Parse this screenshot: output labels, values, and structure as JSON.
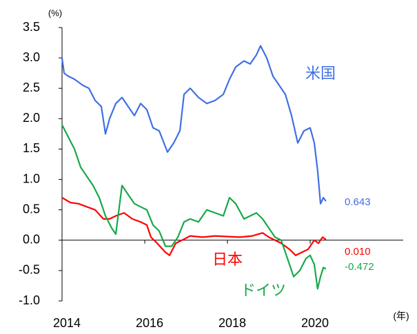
{
  "chart_data": {
    "type": "line",
    "y_label": "(%)",
    "x_label": "(年)",
    "xlim": [
      2014,
      2022.25
    ],
    "xticks": [
      2014,
      2016,
      2018,
      2020
    ],
    "ylim": [
      -1.0,
      3.5
    ],
    "yticks": [
      {
        "value": -1.0,
        "label": "-1.0"
      },
      -0.5,
      {
        "value": 0.0,
        "label": "0.0"
      },
      0.5,
      {
        "value": 1.0,
        "label": "1.0"
      },
      1.5,
      {
        "value": 2.0,
        "label": "2.0"
      },
      2.5,
      {
        "value": 3.0,
        "label": "3.0"
      },
      3.5
    ],
    "series": [
      {
        "name": "米国",
        "color": "#3f6fe6",
        "end_label": "0.643",
        "x": [
          2014.0,
          2014.05,
          2014.15,
          2014.3,
          2014.5,
          2014.65,
          2014.8,
          2014.95,
          2015.05,
          2015.15,
          2015.3,
          2015.45,
          2015.6,
          2015.75,
          2015.9,
          2016.05,
          2016.2,
          2016.35,
          2016.55,
          2016.7,
          2016.85,
          2016.95,
          2017.1,
          2017.3,
          2017.5,
          2017.7,
          2017.9,
          2018.05,
          2018.2,
          2018.4,
          2018.55,
          2018.7,
          2018.8,
          2018.95,
          2019.1,
          2019.25,
          2019.4,
          2019.55,
          2019.7,
          2019.85,
          2020.0,
          2020.1,
          2020.18,
          2020.25,
          2020.32,
          2020.38
        ],
        "values": [
          3.0,
          2.75,
          2.7,
          2.65,
          2.55,
          2.5,
          2.3,
          2.2,
          1.75,
          2.0,
          2.25,
          2.35,
          2.2,
          2.05,
          2.25,
          2.15,
          1.85,
          1.8,
          1.45,
          1.6,
          1.8,
          2.4,
          2.5,
          2.35,
          2.25,
          2.3,
          2.4,
          2.65,
          2.85,
          2.95,
          2.9,
          3.05,
          3.2,
          3.0,
          2.7,
          2.55,
          2.4,
          2.05,
          1.6,
          1.8,
          1.85,
          1.6,
          1.15,
          0.6,
          0.7,
          0.643
        ]
      },
      {
        "name": "日本",
        "color": "#ff0000",
        "end_label": "0.010",
        "x": [
          2014.0,
          2014.2,
          2014.4,
          2014.6,
          2014.8,
          2015.0,
          2015.15,
          2015.3,
          2015.5,
          2015.7,
          2015.9,
          2016.05,
          2016.15,
          2016.3,
          2016.5,
          2016.6,
          2016.75,
          2016.9,
          2017.1,
          2017.4,
          2017.7,
          2018.0,
          2018.3,
          2018.6,
          2018.85,
          2019.0,
          2019.15,
          2019.3,
          2019.5,
          2019.65,
          2019.8,
          2019.95,
          2020.1,
          2020.2,
          2020.3,
          2020.38
        ],
        "values": [
          0.7,
          0.62,
          0.6,
          0.55,
          0.5,
          0.35,
          0.35,
          0.4,
          0.45,
          0.35,
          0.3,
          0.25,
          0.05,
          -0.05,
          -0.2,
          -0.25,
          -0.05,
          0.0,
          0.07,
          0.05,
          0.07,
          0.06,
          0.05,
          0.07,
          0.12,
          0.05,
          0.0,
          -0.05,
          -0.15,
          -0.25,
          -0.2,
          -0.15,
          0.0,
          -0.05,
          0.05,
          0.01
        ]
      },
      {
        "name": "ドイツ",
        "color": "#17a84a",
        "end_label": "-0.472",
        "x": [
          2014.0,
          2014.15,
          2014.3,
          2014.45,
          2014.6,
          2014.75,
          2014.9,
          2015.05,
          2015.2,
          2015.3,
          2015.45,
          2015.6,
          2015.75,
          2015.9,
          2016.05,
          2016.2,
          2016.35,
          2016.5,
          2016.65,
          2016.8,
          2016.95,
          2017.1,
          2017.3,
          2017.5,
          2017.7,
          2017.9,
          2018.05,
          2018.2,
          2018.4,
          2018.55,
          2018.7,
          2018.85,
          2019.0,
          2019.15,
          2019.3,
          2019.45,
          2019.6,
          2019.75,
          2019.9,
          2020.0,
          2020.1,
          2020.18,
          2020.25,
          2020.32,
          2020.38
        ],
        "values": [
          1.9,
          1.7,
          1.5,
          1.2,
          1.05,
          0.9,
          0.7,
          0.4,
          0.2,
          0.1,
          0.9,
          0.75,
          0.6,
          0.55,
          0.5,
          0.25,
          0.15,
          -0.1,
          -0.1,
          0.05,
          0.3,
          0.35,
          0.3,
          0.5,
          0.45,
          0.4,
          0.7,
          0.6,
          0.35,
          0.4,
          0.45,
          0.35,
          0.2,
          0.05,
          0.0,
          -0.3,
          -0.6,
          -0.5,
          -0.3,
          -0.25,
          -0.4,
          -0.8,
          -0.6,
          -0.45,
          -0.472
        ]
      }
    ]
  }
}
